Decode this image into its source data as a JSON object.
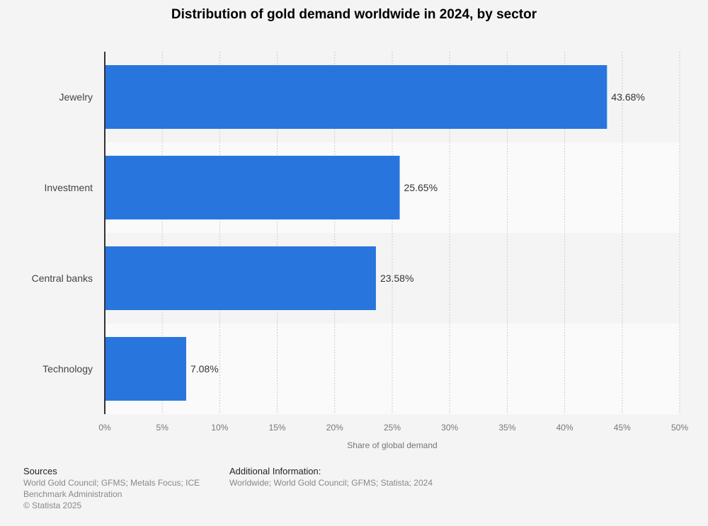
{
  "chart_data": {
    "type": "bar",
    "orientation": "horizontal",
    "title": "Distribution of gold demand worldwide in 2024, by sector",
    "categories": [
      "Jewelry",
      "Investment",
      "Central banks",
      "Technology"
    ],
    "values": [
      43.68,
      25.65,
      23.58,
      7.08
    ],
    "value_labels": [
      "43.68%",
      "25.65%",
      "23.58%",
      "7.08%"
    ],
    "xlabel": "Share of global demand",
    "ylabel": "",
    "xlim": [
      0,
      50
    ],
    "xticks": [
      0,
      5,
      10,
      15,
      20,
      25,
      30,
      35,
      40,
      45,
      50
    ],
    "xtick_labels": [
      "0%",
      "5%",
      "10%",
      "15%",
      "20%",
      "25%",
      "30%",
      "35%",
      "40%",
      "45%",
      "50%"
    ],
    "grid": true,
    "bar_color": "#2876dd"
  },
  "footer": {
    "sources_title": "Sources",
    "sources_lines": [
      "World Gold Council; GFMS; Metals Focus; ICE",
      "Benchmark Administration"
    ],
    "copyright": "© Statista 2025",
    "additional_title": "Additional Information:",
    "additional_text": "Worldwide; World Gold Council; GFMS; Statista; 2024"
  }
}
